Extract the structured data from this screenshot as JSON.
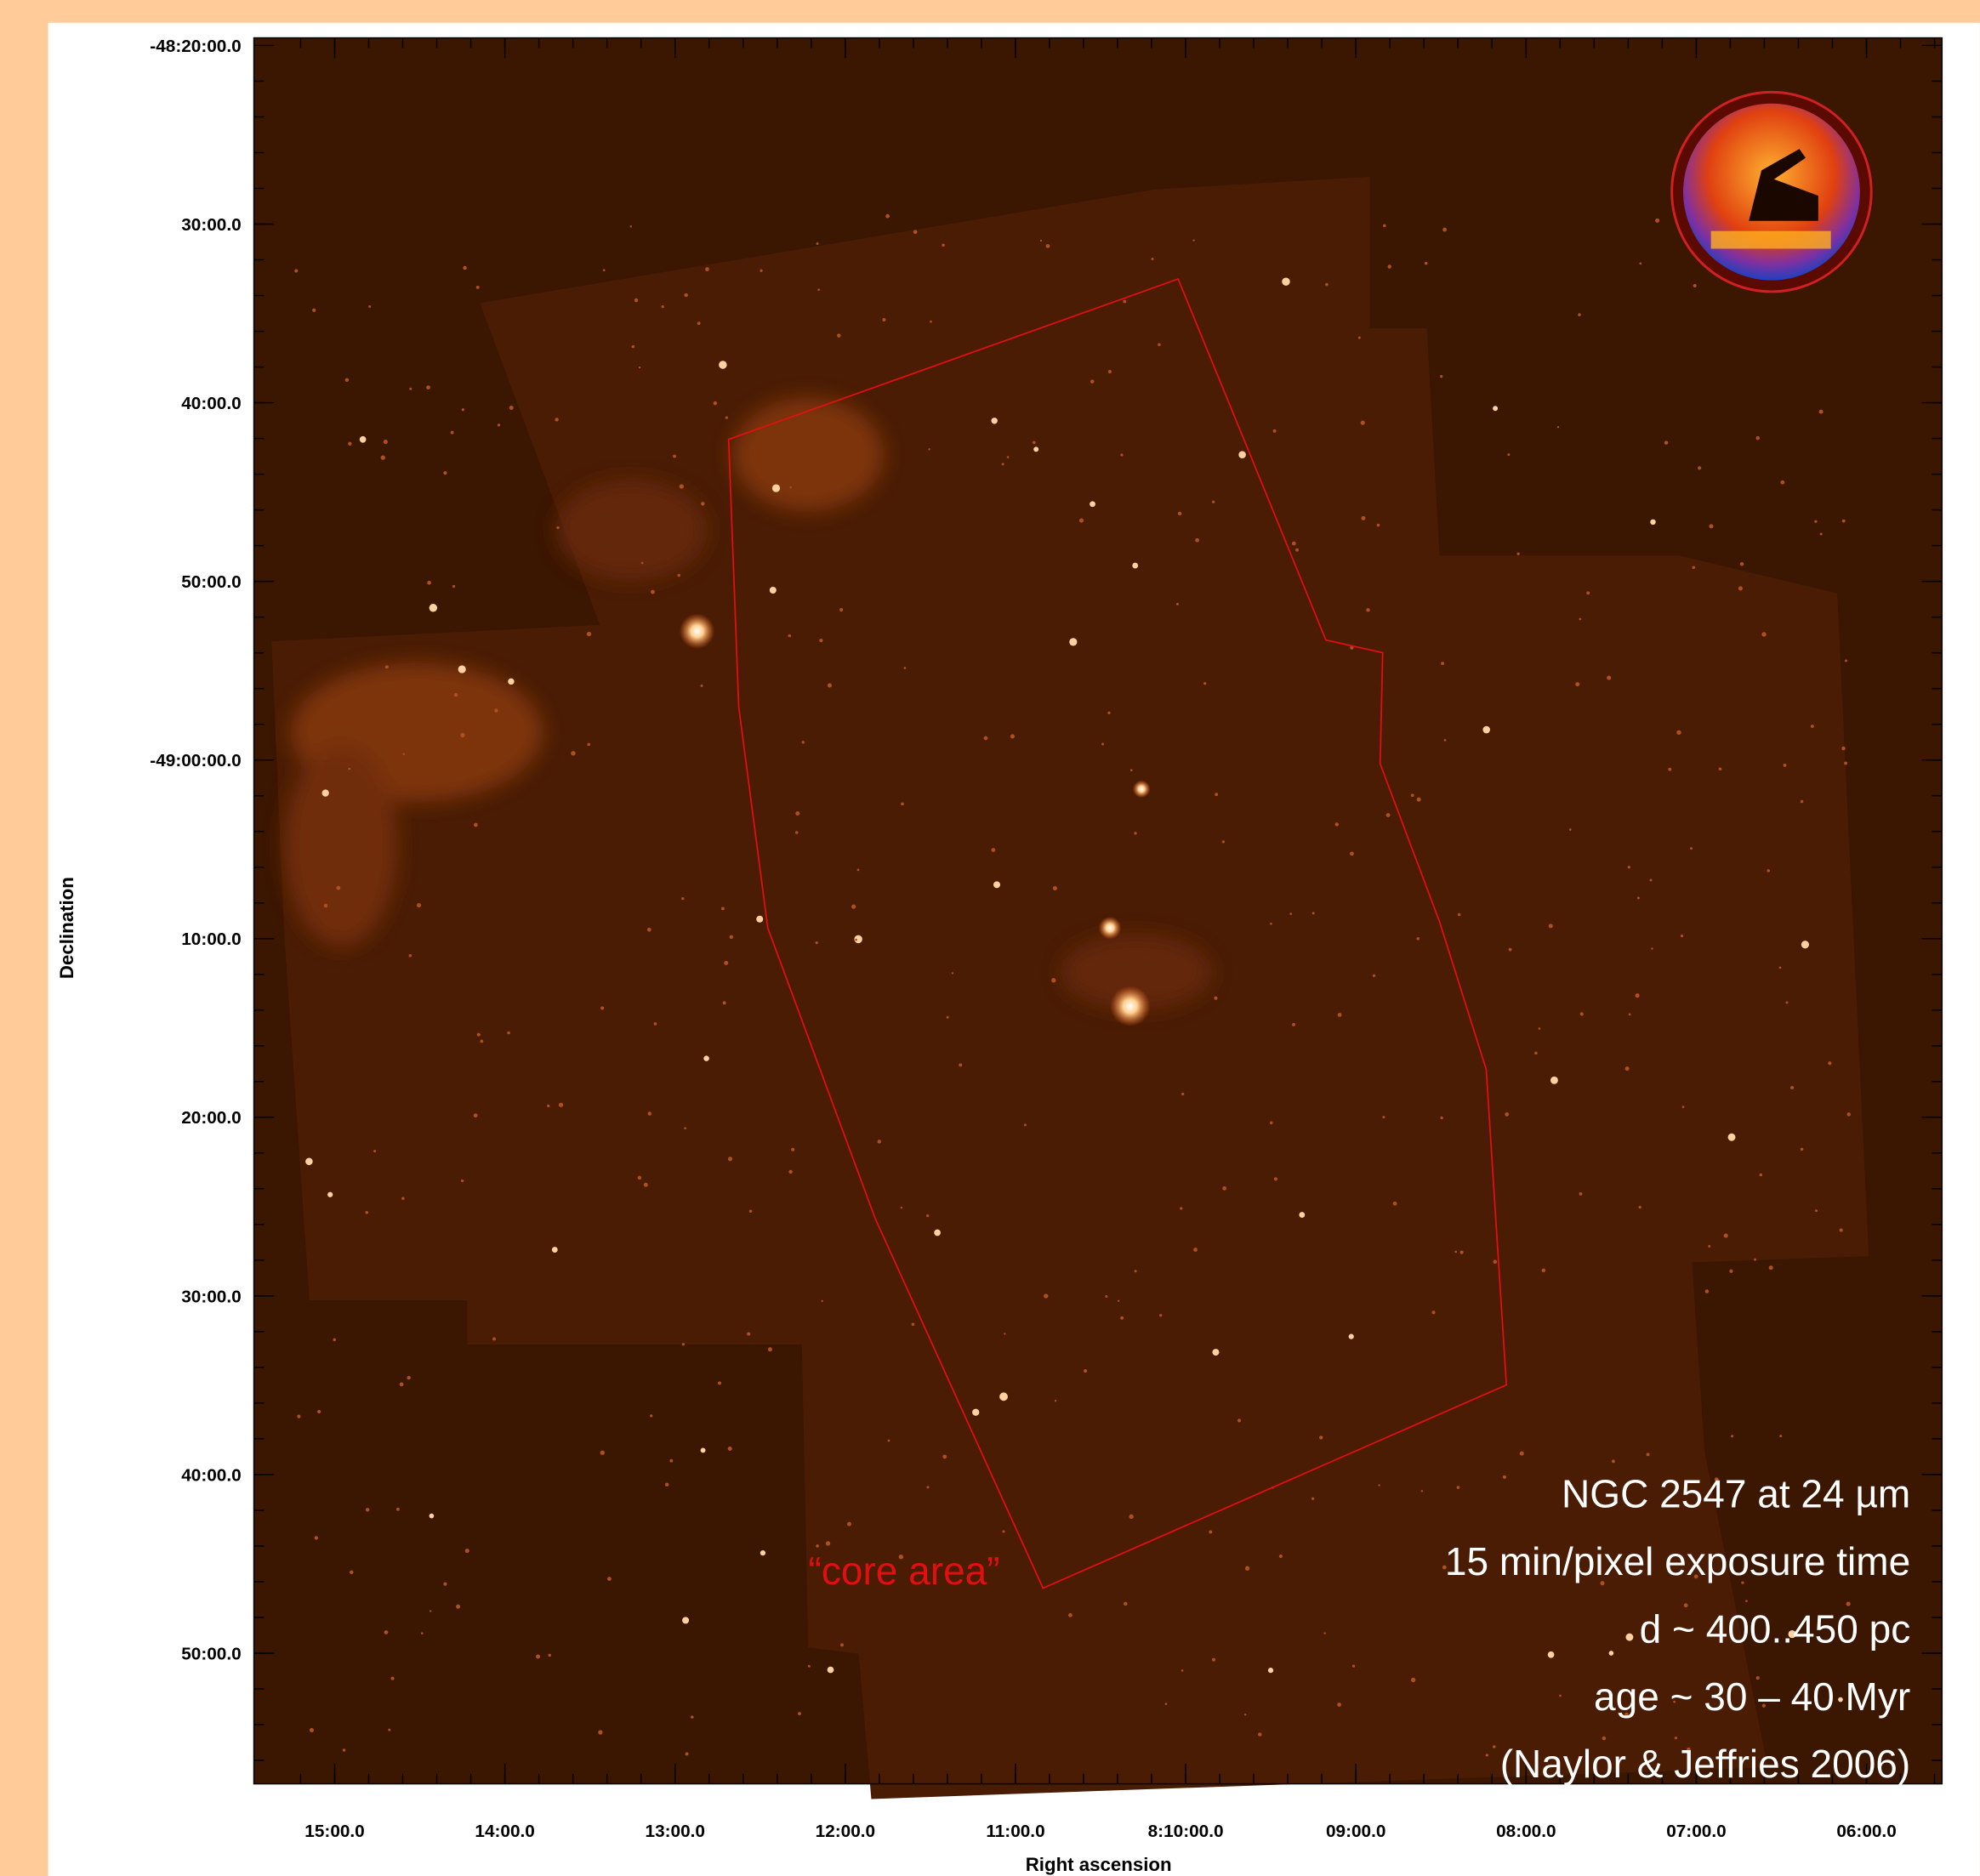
{
  "image": {
    "annotations": [
      "NGC 2547 at 24 µm",
      "15 min/pixel exposure time",
      "d ~ 400..450 pc",
      "age ~ 30 – 40 Myr",
      "(Naylor & Jeffries 2006)"
    ],
    "region_label": "“core area”",
    "y_axis": {
      "label": "Declination",
      "ticks": [
        "-48:20:00.0",
        "30:00.0",
        "40:00.0",
        "50:00.0",
        "-49:00:00.0",
        "10:00.0",
        "20:00.0",
        "30:00.0",
        "40:00.0",
        "50:00.0"
      ]
    },
    "x_axis": {
      "label": "Right ascension",
      "ticks": [
        "15:00.0",
        "14:00.0",
        "13:00.0",
        "12:00.0",
        "11:00.0",
        "8:10:00.0",
        "09:00.0",
        "08:00.0",
        "07:00.0",
        "06:00.0"
      ]
    }
  }
}
